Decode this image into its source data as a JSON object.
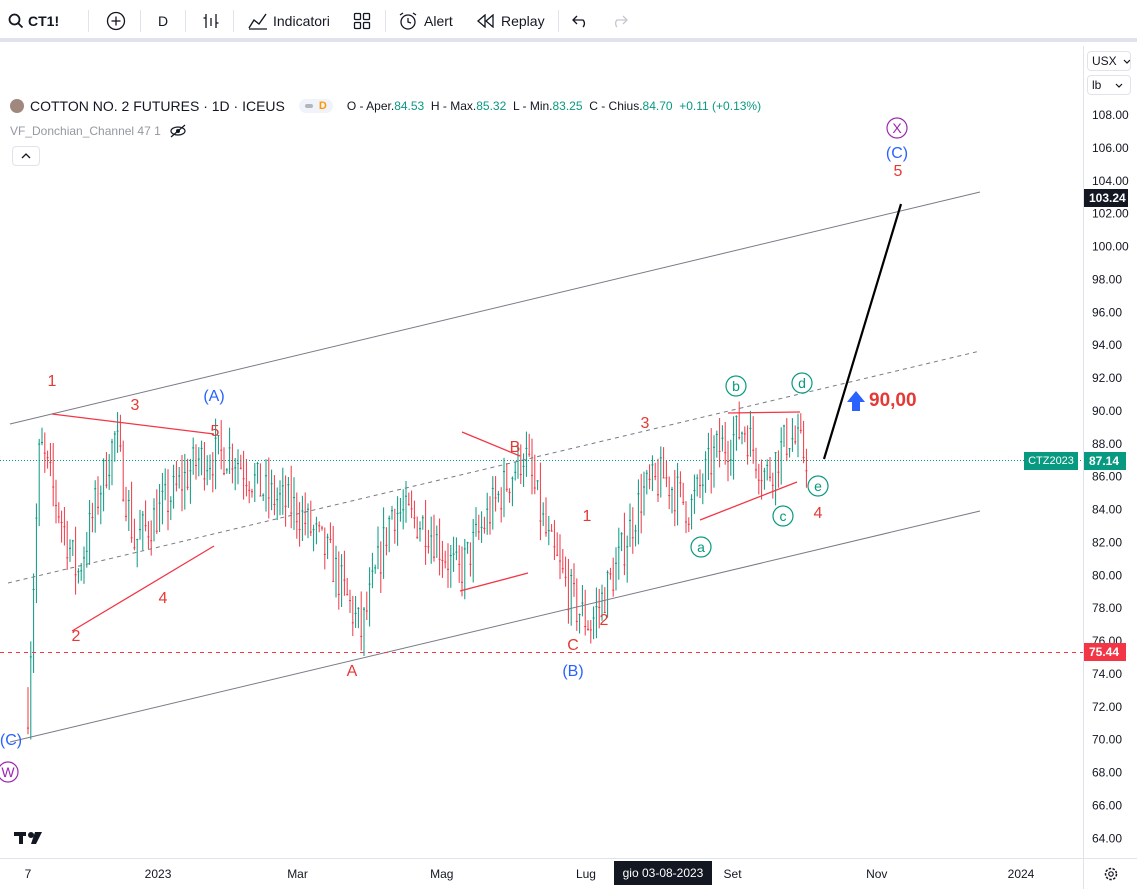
{
  "toolbar": {
    "symbol": "CT1!",
    "interval": "D",
    "indicators_label": "Indicatori",
    "alert_label": "Alert",
    "replay_label": "Replay"
  },
  "legend": {
    "title": "COTTON NO. 2 FUTURES · 1D · ICEUS",
    "badge": "D",
    "o_label": "O - Aper.",
    "o_value": "84.53",
    "h_label": "H - Max.",
    "h_value": "85.32",
    "l_label": "L - Min.",
    "l_value": "83.25",
    "c_label": "C - Chius.",
    "c_value": "84.70",
    "change": "+0.11 (+0.13%)",
    "indicator": "VF_Donchian_Channel 47 1"
  },
  "axis_controls": {
    "currency": "USX",
    "unit": "lb"
  },
  "badges": {
    "top_price": "103.24",
    "symbol_tag": "CTZ2023",
    "last_price": "87.14",
    "support_price": "75.44",
    "crosshair_date": "gio 03-08-2023"
  },
  "annotation": {
    "target": "90,00"
  },
  "chart_data": {
    "type": "candlestick",
    "title": "COTTON NO. 2 FUTURES · 1D · ICEUS",
    "y_ticks": [
      "108.00",
      "106.00",
      "104.00",
      "102.00",
      "100.00",
      "98.00",
      "96.00",
      "94.00",
      "92.00",
      "90.00",
      "88.00",
      "86.00",
      "84.00",
      "82.00",
      "80.00",
      "78.00",
      "76.00",
      "74.00",
      "72.00",
      "70.00",
      "68.00",
      "66.00",
      "64.00"
    ],
    "x_ticks": [
      "7",
      "2023",
      "Mar",
      "Mag",
      "Lug",
      "Set",
      "Nov",
      "2024"
    ],
    "ylim": [
      62.8,
      112.2
    ],
    "series": [
      {
        "approx_path": [
          [
            "2022-11-07",
            72.0
          ],
          [
            "2022-11-12",
            88.0
          ],
          [
            "2022-11-20",
            84.0
          ],
          [
            "2022-11-28",
            80.0
          ],
          [
            "2022-12-07",
            85.0
          ],
          [
            "2022-12-14",
            88.5
          ],
          [
            "2022-12-22",
            82.0
          ],
          [
            "2023-01-05",
            84.5
          ],
          [
            "2023-01-18",
            87.0
          ],
          [
            "2023-02-01",
            87.5
          ],
          [
            "2023-02-15",
            85.0
          ],
          [
            "2023-03-01",
            84.0
          ],
          [
            "2023-03-15",
            81.0
          ],
          [
            "2023-03-28",
            76.5
          ],
          [
            "2023-04-10",
            84.0
          ],
          [
            "2023-04-25",
            83.0
          ],
          [
            "2023-05-08",
            80.0
          ],
          [
            "2023-05-22",
            84.0
          ],
          [
            "2023-06-05",
            87.5
          ],
          [
            "2023-06-15",
            82.0
          ],
          [
            "2023-06-27",
            78.0
          ],
          [
            "2023-07-03",
            77.0
          ],
          [
            "2023-07-14",
            80.5
          ],
          [
            "2023-07-25",
            85.0
          ],
          [
            "2023-08-03",
            86.0
          ],
          [
            "2023-08-14",
            84.0
          ],
          [
            "2023-08-25",
            87.5
          ],
          [
            "2023-09-06",
            89.0
          ],
          [
            "2023-09-15",
            86.0
          ],
          [
            "2023-09-25",
            88.5
          ],
          [
            "2023-10-03",
            87.14
          ]
        ]
      }
    ],
    "horizontal_lines": [
      {
        "price": 75.44,
        "style": "dashed",
        "color": "#f23645"
      },
      {
        "price": 87.14,
        "style": "dotted",
        "color": "#089981"
      }
    ],
    "wave_labels": {
      "red": [
        "1",
        "3",
        "5",
        "2",
        "4",
        "A",
        "B",
        "1",
        "2",
        "C",
        "3",
        "4",
        "5"
      ],
      "blue": [
        "(A)",
        "(B)",
        "(C)",
        "(C)"
      ],
      "green_circled": [
        "a",
        "b",
        "c",
        "d",
        "e"
      ],
      "purple_circled": [
        "W",
        "X"
      ]
    },
    "projection_target": 90.0,
    "grid": false
  },
  "colors": {
    "up": "#089981",
    "down": "#f23645",
    "wave_red": "#e53935",
    "wave_blue": "#2962ff",
    "wave_green": "#089981",
    "wave_purple": "#9c27b0"
  }
}
